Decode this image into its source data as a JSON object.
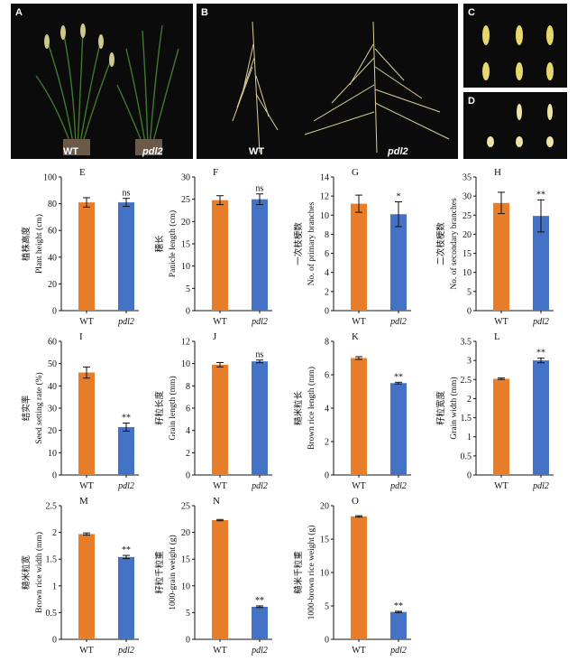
{
  "photos": [
    {
      "label": "A",
      "captions": [
        "WT",
        "pdl2"
      ]
    },
    {
      "label": "B",
      "captions": [
        "WT",
        "pdl2"
      ]
    },
    {
      "label": "C",
      "captions": []
    },
    {
      "label": "D",
      "captions": []
    }
  ],
  "colors": {
    "wt": "#e87e2a",
    "pdl2": "#4472c4",
    "photo_bg": "#0b0b0b"
  },
  "chart_data": [
    {
      "type": "bar",
      "panel": "E",
      "ylabel_cn": "植株高度",
      "ylabel_en": "Plant height (cm)",
      "ylim": [
        0,
        100
      ],
      "ticks": [
        0,
        20,
        40,
        60,
        80,
        100
      ],
      "categories": [
        "WT",
        "pdl2"
      ],
      "values": [
        81,
        81
      ],
      "errors": [
        3.5,
        3
      ],
      "annot": [
        "",
        "ns"
      ]
    },
    {
      "type": "bar",
      "panel": "F",
      "ylabel_cn": "穗长",
      "ylabel_en": "Panicle length (cm)",
      "ylim": [
        0,
        30
      ],
      "ticks": [
        0,
        5,
        10,
        15,
        20,
        25,
        30
      ],
      "categories": [
        "WT",
        "pdl2"
      ],
      "values": [
        24.8,
        25
      ],
      "errors": [
        1,
        1.2
      ],
      "annot": [
        "",
        "ns"
      ]
    },
    {
      "type": "bar",
      "panel": "G",
      "ylabel_cn": "一次枝梗数",
      "ylabel_en": "No. of primary branches",
      "ylim": [
        0,
        14
      ],
      "ticks": [
        0,
        2,
        4,
        6,
        8,
        10,
        12,
        14
      ],
      "categories": [
        "WT",
        "pdl2"
      ],
      "values": [
        11.2,
        10.1
      ],
      "errors": [
        0.9,
        1.3
      ],
      "annot": [
        "",
        "*"
      ]
    },
    {
      "type": "bar",
      "panel": "H",
      "ylabel_cn": "二次枝梗数",
      "ylabel_en": "No. of secondary branches",
      "ylim": [
        0,
        35
      ],
      "ticks": [
        0,
        5,
        10,
        15,
        20,
        25,
        30,
        35
      ],
      "categories": [
        "WT",
        "pdl2"
      ],
      "values": [
        28.2,
        24.8
      ],
      "errors": [
        2.8,
        4.2
      ],
      "annot": [
        "",
        "**"
      ]
    },
    {
      "type": "bar",
      "panel": "I",
      "ylabel_cn": "结实率",
      "ylabel_en": "Seed setting rate (%)",
      "ylim": [
        0,
        60
      ],
      "ticks": [
        0,
        10,
        20,
        30,
        40,
        50,
        60
      ],
      "categories": [
        "WT",
        "pdl2"
      ],
      "values": [
        46,
        21.5
      ],
      "errors": [
        2.5,
        1.8
      ],
      "annot": [
        "",
        "**"
      ]
    },
    {
      "type": "bar",
      "panel": "J",
      "ylabel_cn": "籽粒长度",
      "ylabel_en": "Grain length (mm)",
      "ylim": [
        0,
        12
      ],
      "ticks": [
        0,
        2,
        4,
        6,
        8,
        10,
        12
      ],
      "categories": [
        "WT",
        "pdl2"
      ],
      "values": [
        9.9,
        10.2
      ],
      "errors": [
        0.2,
        0.12
      ],
      "annot": [
        "",
        "ns"
      ]
    },
    {
      "type": "bar",
      "panel": "K",
      "ylabel_cn": "糙米粒长",
      "ylabel_en": "Brown rice length (mm)",
      "ylim": [
        0,
        8
      ],
      "ticks": [
        0,
        2,
        4,
        6,
        8
      ],
      "categories": [
        "WT",
        "pdl2"
      ],
      "values": [
        7.0,
        5.5
      ],
      "errors": [
        0.08,
        0.05
      ],
      "annot": [
        "",
        "**"
      ]
    },
    {
      "type": "bar",
      "panel": "L",
      "ylabel_cn": "籽粒宽度",
      "ylabel_en": "Grain width (mm)",
      "ylim": [
        0,
        3.5
      ],
      "ticks": [
        0,
        0.5,
        1.0,
        1.5,
        2.0,
        2.5,
        3.0,
        3.5
      ],
      "categories": [
        "WT",
        "pdl2"
      ],
      "values": [
        2.52,
        3.0
      ],
      "errors": [
        0.02,
        0.06
      ],
      "annot": [
        "",
        "**"
      ]
    },
    {
      "type": "bar",
      "panel": "M",
      "ylabel_cn": "糙米粒宽",
      "ylabel_en": "Brown rice width (mm)",
      "ylim": [
        0,
        2.5
      ],
      "ticks": [
        0,
        0.5,
        1.0,
        1.5,
        2.0,
        2.5
      ],
      "categories": [
        "WT",
        "pdl2"
      ],
      "values": [
        1.97,
        1.54
      ],
      "errors": [
        0.02,
        0.03
      ],
      "annot": [
        "",
        "**"
      ]
    },
    {
      "type": "bar",
      "panel": "N",
      "ylabel_cn": "籽粒千粒重",
      "ylabel_en": "1000-grain weight (g)",
      "ylim": [
        0,
        25
      ],
      "ticks": [
        0,
        5,
        10,
        15,
        20,
        25
      ],
      "categories": [
        "WT",
        "pdl2"
      ],
      "values": [
        22.3,
        6.1
      ],
      "errors": [
        0.12,
        0.15
      ],
      "annot": [
        "",
        "**"
      ]
    },
    {
      "type": "bar",
      "panel": "O",
      "ylabel_cn": "糙米千粒重",
      "ylabel_en": "1000-brown rice weight (g)",
      "ylim": [
        0,
        20
      ],
      "ticks": [
        0,
        5,
        10,
        15,
        20
      ],
      "categories": [
        "WT",
        "pdl2"
      ],
      "values": [
        18.4,
        4.1
      ],
      "errors": [
        0.1,
        0.1
      ],
      "annot": [
        "",
        "**"
      ]
    }
  ]
}
